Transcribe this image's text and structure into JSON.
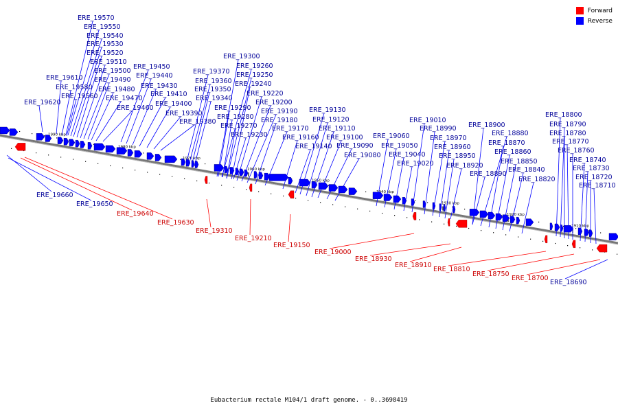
{
  "caption": "Eubacterium rectale M104/1 draft genome. - 0..3698419",
  "legend": [
    {
      "label": "Forward",
      "color": "#ff0000"
    },
    {
      "label": "Reverse",
      "color": "#0000ff"
    }
  ],
  "colors": {
    "forward": "#ff0000",
    "reverse": "#0000ff",
    "forward_label": "#cc0000",
    "reverse_label": "#000099",
    "axis": "#888888"
  },
  "scale_ticks": [
    {
      "label": "1990 kbp"
    },
    {
      "label": "1980 kbp"
    },
    {
      "label": "1970 kbp"
    },
    {
      "label": "1960 kbp"
    },
    {
      "label": "1950 kbp"
    },
    {
      "label": "1940 kbp"
    },
    {
      "label": "1930 kbp"
    },
    {
      "label": "1920 kbp"
    },
    {
      "label": "1910 kbp"
    }
  ],
  "reverse_labels": [
    "ERE_19570",
    "ERE_19550",
    "ERE_19540",
    "ERE_19530",
    "ERE_19520",
    "ERE_19510",
    "ERE_19500",
    "ERE_19490",
    "ERE_19480",
    "ERE_19470",
    "ERE_19460",
    "ERE_19610",
    "ERE_19580",
    "ERE_19560",
    "ERE_19620",
    "ERE_19450",
    "ERE_19440",
    "ERE_19430",
    "ERE_19410",
    "ERE_19400",
    "ERE_19390",
    "ERE_19380",
    "ERE_19370",
    "ERE_19360",
    "ERE_19350",
    "ERE_19340",
    "ERE_19300",
    "ERE_19260",
    "ERE_19250",
    "ERE_19240",
    "ERE_19220",
    "ERE_19200",
    "ERE_19190",
    "ERE_19180",
    "ERE_19170",
    "ERE_19160",
    "ERE_19290",
    "ERE_19280",
    "ERE_19270",
    "ERE_19230",
    "ERE_19130",
    "ERE_19120",
    "ERE_19110",
    "ERE_19100",
    "ERE_19090",
    "ERE_19080",
    "ERE_19140",
    "ERE_19060",
    "ERE_19050",
    "ERE_19040",
    "ERE_19020",
    "ERE_19010",
    "ERE_18990",
    "ERE_18970",
    "ERE_18960",
    "ERE_18950",
    "ERE_18920",
    "ERE_18900",
    "ERE_18880",
    "ERE_18870",
    "ERE_18860",
    "ERE_18850",
    "ERE_18840",
    "ERE_18820",
    "ERE_18890",
    "ERE_18800",
    "ERE_18790",
    "ERE_18780",
    "ERE_18770",
    "ERE_18760",
    "ERE_18740",
    "ERE_18730",
    "ERE_18720",
    "ERE_18710",
    "ERE_19660",
    "ERE_19650",
    "ERE_18690"
  ],
  "forward_labels": [
    "ERE_19640",
    "ERE_19630",
    "ERE_19310",
    "ERE_19210",
    "ERE_19150",
    "ERE_19000",
    "ERE_18930",
    "ERE_18910",
    "ERE_18810",
    "ERE_18750",
    "ERE_18700"
  ]
}
